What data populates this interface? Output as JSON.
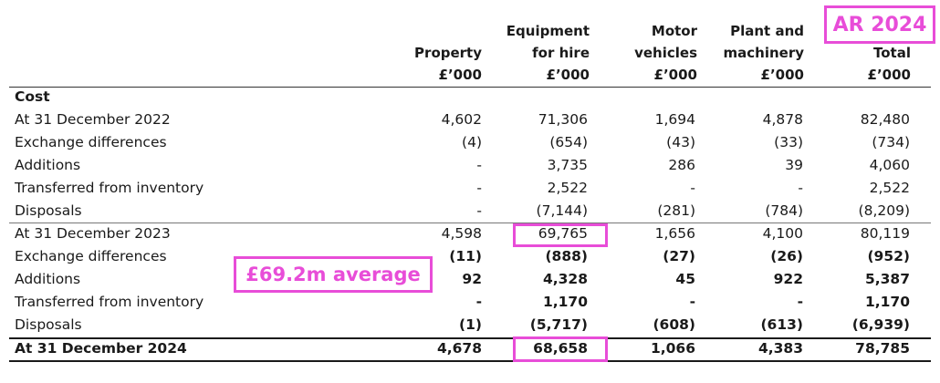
{
  "badge_year": "AR 2024",
  "average_note": "£69.2m average",
  "columns": [
    {
      "line1": "",
      "line2": "Property",
      "unit": "£’000"
    },
    {
      "line1": "Equipment",
      "line2": "for hire",
      "unit": "£’000"
    },
    {
      "line1": "Motor",
      "line2": "vehicles",
      "unit": "£’000"
    },
    {
      "line1": "Plant and",
      "line2": "machinery",
      "unit": "£’000"
    },
    {
      "line1": "",
      "line2": "Total",
      "unit": "£’000"
    }
  ],
  "section_label": "Cost",
  "rows": [
    {
      "label": "At 31 December 2022",
      "values": [
        "4,602",
        "71,306",
        "1,694",
        "4,878",
        "82,480"
      ]
    },
    {
      "label": "Exchange differences",
      "values": [
        "(4)",
        "(654)",
        "(43)",
        "(33)",
        "(734)"
      ]
    },
    {
      "label": "Additions",
      "values": [
        "-",
        "3,735",
        "286",
        "39",
        "4,060"
      ]
    },
    {
      "label": "Transferred from inventory",
      "values": [
        "-",
        "2,522",
        "-",
        "-",
        "2,522"
      ]
    },
    {
      "label": "Disposals",
      "values": [
        "-",
        "(7,144)",
        "(281)",
        "(784)",
        "(8,209)"
      ]
    },
    {
      "label": "At 31 December 2023",
      "values": [
        "4,598",
        "69,765",
        "1,656",
        "4,100",
        "80,119"
      ]
    },
    {
      "label": "Exchange differences",
      "values": [
        "(11)",
        "(888)",
        "(27)",
        "(26)",
        "(952)"
      ]
    },
    {
      "label": "Additions",
      "values": [
        "92",
        "4,328",
        "45",
        "922",
        "5,387"
      ]
    },
    {
      "label": "Transferred from inventory",
      "values": [
        "-",
        "1,170",
        "-",
        "-",
        "1,170"
      ]
    },
    {
      "label": "Disposals",
      "values": [
        "(1)",
        "(5,717)",
        "(608)",
        "(613)",
        "(6,939)"
      ]
    },
    {
      "label": "At 31 December 2024",
      "values": [
        "4,678",
        "68,658",
        "1,066",
        "4,383",
        "78,785"
      ]
    }
  ]
}
